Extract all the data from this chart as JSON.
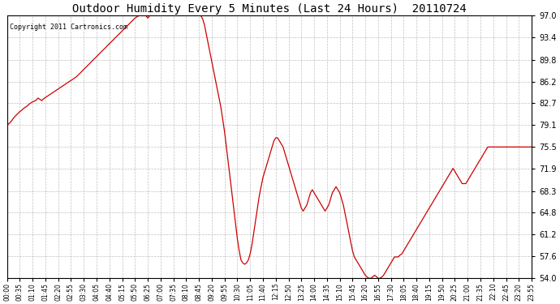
{
  "title": "Outdoor Humidity Every 5 Minutes (Last 24 Hours)  20110724",
  "copyright": "Copyright 2011 Cartronics.com",
  "background_color": "#ffffff",
  "plot_bg_color": "#ffffff",
  "line_color": "#cc0000",
  "grid_color": "#b0b0b0",
  "ylim": [
    54.0,
    97.0
  ],
  "yticks": [
    54.0,
    57.6,
    61.2,
    64.8,
    68.3,
    71.9,
    75.5,
    79.1,
    82.7,
    86.2,
    89.8,
    93.4,
    97.0
  ],
  "x_tick_labels": [
    "00:00",
    "00:35",
    "01:10",
    "01:45",
    "02:20",
    "02:55",
    "03:30",
    "04:05",
    "04:40",
    "05:15",
    "05:50",
    "06:25",
    "07:00",
    "07:35",
    "08:10",
    "08:45",
    "09:20",
    "09:55",
    "10:30",
    "11:05",
    "11:40",
    "12:15",
    "12:50",
    "13:25",
    "14:00",
    "14:35",
    "15:10",
    "15:45",
    "16:20",
    "16:55",
    "17:30",
    "18:05",
    "18:40",
    "19:15",
    "19:50",
    "20:25",
    "21:00",
    "21:35",
    "22:10",
    "22:45",
    "23:20",
    "23:55"
  ],
  "key_points_minutes": [
    0,
    5,
    10,
    15,
    20,
    25,
    30,
    35,
    40,
    45,
    50,
    55,
    60,
    65,
    70,
    75,
    80,
    85,
    90,
    95,
    100,
    105,
    110,
    115,
    120,
    125,
    130,
    135,
    140,
    145,
    150,
    155,
    160,
    165,
    170,
    175,
    180,
    185,
    190,
    195,
    200,
    205,
    210,
    215,
    220,
    225,
    230,
    235,
    240,
    245,
    250,
    255,
    260,
    265,
    270,
    275,
    280,
    285,
    290,
    295,
    300,
    305,
    310,
    315,
    320,
    325,
    330,
    335,
    340,
    345,
    350,
    355,
    360,
    365,
    370,
    375,
    380,
    385,
    390,
    395,
    400,
    405,
    410,
    415,
    420,
    425,
    430,
    435,
    440,
    445,
    450,
    455,
    460,
    465,
    470,
    475,
    480,
    485,
    490,
    495,
    500,
    505,
    510,
    515,
    520,
    525,
    530,
    535,
    540,
    545,
    550,
    555,
    560,
    565,
    570,
    575,
    580,
    585,
    590,
    595,
    600,
    605,
    610,
    615,
    620,
    625,
    630,
    635,
    640,
    645,
    650,
    655,
    660,
    665,
    670,
    675,
    680,
    685,
    690,
    695,
    700,
    705,
    710,
    715,
    720,
    725,
    730,
    735,
    740,
    745,
    750,
    755,
    760,
    765,
    770,
    775,
    780,
    785,
    790,
    795,
    800,
    805,
    810,
    815,
    820,
    825,
    830,
    835,
    840,
    845,
    850,
    855,
    860,
    865,
    870,
    875,
    880,
    885,
    890,
    895,
    900,
    905,
    910,
    915,
    920,
    925,
    930,
    935,
    940,
    945,
    950,
    955,
    960,
    965,
    970,
    975,
    980,
    985,
    990,
    995,
    1000,
    1005,
    1010,
    1015,
    1020,
    1025,
    1030,
    1035,
    1040,
    1045,
    1050,
    1055,
    1060,
    1065,
    1070,
    1075,
    1080,
    1085,
    1090,
    1095,
    1100,
    1105,
    1110,
    1115,
    1120,
    1125,
    1130,
    1135,
    1140,
    1145,
    1150,
    1155,
    1160,
    1165,
    1170,
    1175,
    1180,
    1185,
    1190,
    1195,
    1200,
    1205,
    1210,
    1215,
    1220,
    1225,
    1230,
    1235,
    1240,
    1245,
    1250,
    1255,
    1260,
    1265,
    1270,
    1275,
    1280,
    1285,
    1290,
    1295,
    1300,
    1305,
    1310,
    1315,
    1320,
    1325,
    1330,
    1335,
    1340,
    1345,
    1350,
    1355,
    1360,
    1365,
    1370,
    1375,
    1380,
    1385,
    1390,
    1395,
    1400,
    1405,
    1410,
    1415,
    1420,
    1425,
    1430,
    1435
  ],
  "key_points_values": [
    79.1,
    79.3,
    79.6,
    80.0,
    80.4,
    80.7,
    81.0,
    81.3,
    81.5,
    81.8,
    82.0,
    82.2,
    82.5,
    82.7,
    82.9,
    83.0,
    83.2,
    83.5,
    83.3,
    83.1,
    83.4,
    83.6,
    83.8,
    84.0,
    84.2,
    84.4,
    84.6,
    84.8,
    85.0,
    85.2,
    85.4,
    85.6,
    85.8,
    86.0,
    86.2,
    86.4,
    86.6,
    86.8,
    87.0,
    87.3,
    87.6,
    87.9,
    88.2,
    88.5,
    88.8,
    89.1,
    89.4,
    89.7,
    90.0,
    90.3,
    90.6,
    90.9,
    91.2,
    91.5,
    91.8,
    92.1,
    92.4,
    92.7,
    93.0,
    93.3,
    93.6,
    93.9,
    94.2,
    94.5,
    94.8,
    95.1,
    95.4,
    95.7,
    96.0,
    96.3,
    96.6,
    96.8,
    97.0,
    97.0,
    97.0,
    97.0,
    97.0,
    96.6,
    97.0,
    97.0,
    97.0,
    97.0,
    97.0,
    97.0,
    97.0,
    97.0,
    97.0,
    97.0,
    97.0,
    97.0,
    97.0,
    97.0,
    97.0,
    97.0,
    97.0,
    97.0,
    97.0,
    97.0,
    97.0,
    97.0,
    97.0,
    97.0,
    97.0,
    97.0,
    97.0,
    97.0,
    97.0,
    96.5,
    95.5,
    94.0,
    92.5,
    91.0,
    89.5,
    88.0,
    86.5,
    85.0,
    83.5,
    82.0,
    80.0,
    78.0,
    75.5,
    73.0,
    70.5,
    68.0,
    65.5,
    63.0,
    60.5,
    58.5,
    57.0,
    56.5,
    56.3,
    56.5,
    57.0,
    58.0,
    59.5,
    61.5,
    63.5,
    65.5,
    67.5,
    69.0,
    70.5,
    71.5,
    72.5,
    73.5,
    74.5,
    75.5,
    76.5,
    77.0,
    77.0,
    76.5,
    76.0,
    75.5,
    74.5,
    73.5,
    72.5,
    71.5,
    70.5,
    69.5,
    68.5,
    67.5,
    66.5,
    65.5,
    65.0,
    65.5,
    66.0,
    67.0,
    68.0,
    68.5,
    68.0,
    67.5,
    67.0,
    66.5,
    66.0,
    65.5,
    65.0,
    65.5,
    66.0,
    67.0,
    68.0,
    68.5,
    69.0,
    68.5,
    68.0,
    67.0,
    66.0,
    64.5,
    63.0,
    61.5,
    60.0,
    58.5,
    57.5,
    57.0,
    56.5,
    56.0,
    55.5,
    55.0,
    54.5,
    54.2,
    54.0,
    54.0,
    54.2,
    54.5,
    54.3,
    54.0,
    54.0,
    54.2,
    54.5,
    55.0,
    55.5,
    56.0,
    56.5,
    57.0,
    57.5,
    57.5,
    57.5,
    57.8,
    58.0,
    58.5,
    59.0,
    59.5,
    60.0,
    60.5,
    61.0,
    61.5,
    62.0,
    62.5,
    63.0,
    63.5,
    64.0,
    64.5,
    65.0,
    65.5,
    66.0,
    66.5,
    67.0,
    67.5,
    68.0,
    68.5,
    69.0,
    69.5,
    70.0,
    70.5,
    71.0,
    71.5,
    72.0,
    71.5,
    71.0,
    70.5,
    70.0,
    69.5,
    69.5,
    69.5,
    70.0,
    70.5,
    71.0,
    71.5,
    72.0,
    72.5,
    73.0,
    73.5,
    74.0,
    74.5,
    75.0,
    75.5,
    75.5,
    75.5,
    75.5,
    75.5,
    75.5,
    75.5,
    75.5,
    75.5,
    75.5,
    75.5,
    75.5,
    75.5,
    75.5,
    75.5,
    75.5,
    75.5,
    75.5,
    75.5,
    75.5,
    75.5,
    75.5,
    75.5,
    75.5,
    75.5
  ]
}
